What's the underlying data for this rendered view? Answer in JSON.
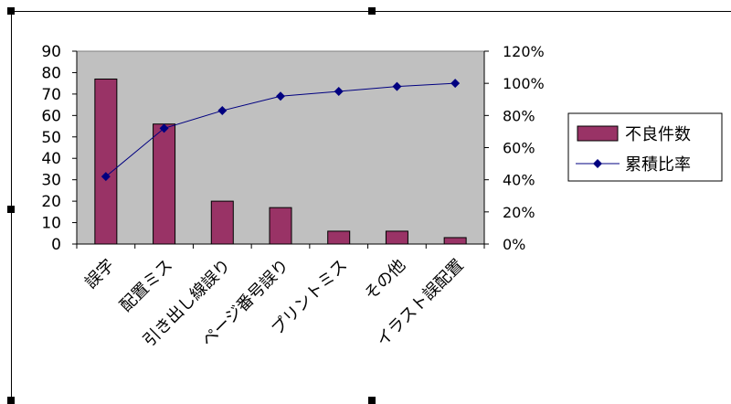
{
  "chart_data": {
    "type": "bar-line",
    "categories": [
      "誤字",
      "配置ミス",
      "引き出し線誤り",
      "ページ番号誤り",
      "プリントミス",
      "その他",
      "イラスト誤配置"
    ],
    "series": [
      {
        "name": "不良件数",
        "type": "bar",
        "axis": "left",
        "values": [
          77,
          56,
          20,
          17,
          6,
          6,
          3
        ]
      },
      {
        "name": "累積比率",
        "type": "line",
        "axis": "right",
        "values": [
          42,
          72,
          83,
          92,
          95,
          98,
          100
        ]
      }
    ],
    "y_left": {
      "min": 0,
      "max": 90,
      "step": 10,
      "ticks": [
        "0",
        "10",
        "20",
        "30",
        "40",
        "50",
        "60",
        "70",
        "80",
        "90"
      ]
    },
    "y_right": {
      "min": 0,
      "max": 120,
      "step": 20,
      "ticks": [
        "0%",
        "20%",
        "40%",
        "60%",
        "80%",
        "100%",
        "120%"
      ]
    },
    "legend_position": "right",
    "grid": false,
    "colors": {
      "plot_background": "#c0c0c0",
      "bar_fill": "#993366",
      "line": "#000080",
      "marker": "#000080"
    }
  }
}
